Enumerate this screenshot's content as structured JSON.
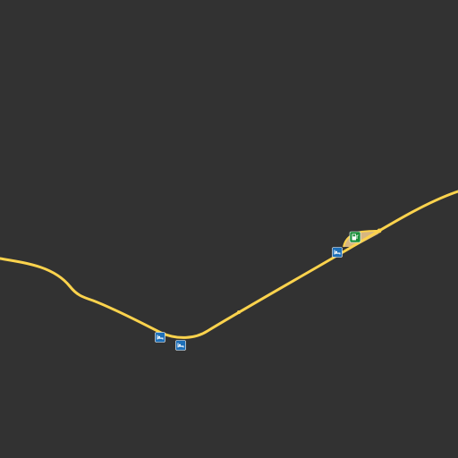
{
  "map": {
    "background_color": "#323232",
    "road_color": "#fcd34d",
    "service_area_color": "#e8c48a",
    "roads": [
      {
        "name": "highway-main",
        "class": "motorway"
      }
    ],
    "pois": [
      {
        "name": "hotel-poi-1",
        "icon": "bed-icon",
        "color": "#1d6fb8"
      },
      {
        "name": "hotel-poi-2",
        "icon": "bed-icon",
        "color": "#1d6fb8"
      },
      {
        "name": "hotel-poi-3",
        "icon": "bed-icon",
        "color": "#1d6fb8"
      },
      {
        "name": "fuel-poi",
        "icon": "fuel-pump-icon",
        "color": "#1b8f3a"
      }
    ]
  }
}
